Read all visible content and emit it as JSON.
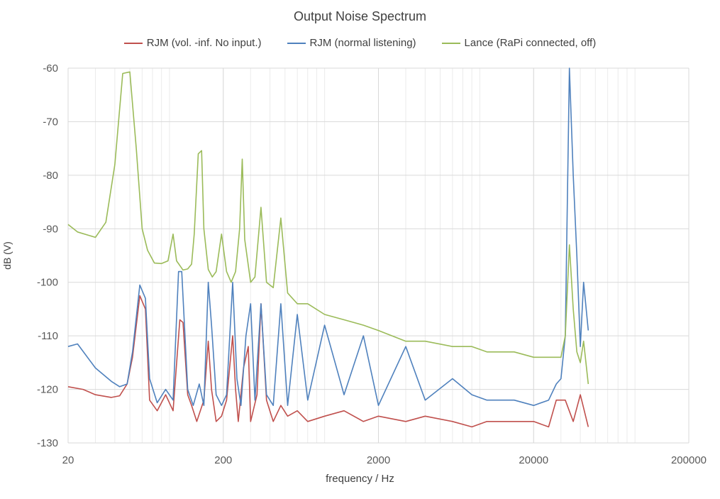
{
  "chart_data": {
    "type": "line",
    "title": "Output Noise Spectrum",
    "xlabel": "frequency / Hz",
    "ylabel": "dB (V)",
    "xscale": "log",
    "xlim": [
      20,
      200000
    ],
    "ylim": [
      -130,
      -60
    ],
    "x_ticks": [
      {
        "value": 20,
        "label": "20"
      },
      {
        "value": 200,
        "label": "200"
      },
      {
        "value": 2000,
        "label": "2000"
      },
      {
        "value": 20000,
        "label": "20000"
      },
      {
        "value": 200000,
        "label": "200000"
      }
    ],
    "y_ticks": [
      {
        "value": -60,
        "label": "-60"
      },
      {
        "value": -70,
        "label": "-70"
      },
      {
        "value": -80,
        "label": "-80"
      },
      {
        "value": -90,
        "label": "-90"
      },
      {
        "value": -100,
        "label": "-100"
      },
      {
        "value": -110,
        "label": "-110"
      },
      {
        "value": -120,
        "label": "-120"
      },
      {
        "value": -130,
        "label": "-130"
      }
    ],
    "grid": true,
    "legend_position": "top",
    "series": [
      {
        "name": "RJM (vol. -inf. No input.)",
        "color": "#C0504D",
        "points": [
          [
            20,
            -119.5
          ],
          [
            25,
            -120
          ],
          [
            30,
            -121
          ],
          [
            38,
            -121.5
          ],
          [
            43,
            -121.2
          ],
          [
            48,
            -119
          ],
          [
            52,
            -114
          ],
          [
            58,
            -102.5
          ],
          [
            63,
            -105
          ],
          [
            67,
            -122
          ],
          [
            75,
            -124
          ],
          [
            85,
            -121
          ],
          [
            95,
            -124
          ],
          [
            105,
            -107
          ],
          [
            110,
            -107.5
          ],
          [
            118,
            -121
          ],
          [
            125,
            -123
          ],
          [
            135,
            -126
          ],
          [
            150,
            -122
          ],
          [
            160,
            -111
          ],
          [
            168,
            -120
          ],
          [
            180,
            -126
          ],
          [
            195,
            -125
          ],
          [
            210,
            -122
          ],
          [
            230,
            -110
          ],
          [
            240,
            -120
          ],
          [
            250,
            -126
          ],
          [
            270,
            -116
          ],
          [
            290,
            -112
          ],
          [
            300,
            -126
          ],
          [
            330,
            -121
          ],
          [
            350,
            -104
          ],
          [
            380,
            -122
          ],
          [
            420,
            -126
          ],
          [
            470,
            -123
          ],
          [
            520,
            -125
          ],
          [
            600,
            -124
          ],
          [
            700,
            -126
          ],
          [
            900,
            -125
          ],
          [
            1200,
            -124
          ],
          [
            1600,
            -126
          ],
          [
            2000,
            -125
          ],
          [
            3000,
            -126
          ],
          [
            4000,
            -125
          ],
          [
            6000,
            -126
          ],
          [
            8000,
            -127
          ],
          [
            10000,
            -126
          ],
          [
            15000,
            -126
          ],
          [
            20000,
            -126
          ],
          [
            25000,
            -127
          ],
          [
            28000,
            -122
          ],
          [
            32000,
            -122
          ],
          [
            36000,
            -126
          ],
          [
            40000,
            -121
          ],
          [
            45000,
            -127
          ]
        ]
      },
      {
        "name": "RJM (normal listening)",
        "color": "#4F81BD",
        "points": [
          [
            20,
            -112
          ],
          [
            23,
            -111.5
          ],
          [
            30,
            -116
          ],
          [
            38,
            -118.5
          ],
          [
            43,
            -119.5
          ],
          [
            48,
            -119
          ],
          [
            52,
            -113
          ],
          [
            58,
            -100.5
          ],
          [
            63,
            -103
          ],
          [
            67,
            -118
          ],
          [
            75,
            -122.5
          ],
          [
            85,
            -120
          ],
          [
            95,
            -122
          ],
          [
            103,
            -98
          ],
          [
            108,
            -98
          ],
          [
            118,
            -120
          ],
          [
            128,
            -123
          ],
          [
            140,
            -119
          ],
          [
            150,
            -123
          ],
          [
            160,
            -100
          ],
          [
            168,
            -108
          ],
          [
            180,
            -121
          ],
          [
            195,
            -123
          ],
          [
            210,
            -121
          ],
          [
            230,
            -100
          ],
          [
            245,
            -118
          ],
          [
            260,
            -123
          ],
          [
            280,
            -110
          ],
          [
            300,
            -104
          ],
          [
            320,
            -122
          ],
          [
            350,
            -104
          ],
          [
            380,
            -121
          ],
          [
            420,
            -123
          ],
          [
            470,
            -104
          ],
          [
            520,
            -123
          ],
          [
            600,
            -106
          ],
          [
            700,
            -122
          ],
          [
            900,
            -108
          ],
          [
            1200,
            -121
          ],
          [
            1600,
            -110
          ],
          [
            2000,
            -123
          ],
          [
            3000,
            -112
          ],
          [
            4000,
            -122
          ],
          [
            6000,
            -118
          ],
          [
            8000,
            -121
          ],
          [
            10000,
            -122
          ],
          [
            15000,
            -122
          ],
          [
            20000,
            -123
          ],
          [
            25000,
            -122
          ],
          [
            28000,
            -119
          ],
          [
            30000,
            -118
          ],
          [
            32000,
            -110
          ],
          [
            34000,
            -60
          ],
          [
            36000,
            -80
          ],
          [
            38000,
            -95
          ],
          [
            40000,
            -112
          ],
          [
            42000,
            -100
          ],
          [
            45000,
            -109
          ]
        ]
      },
      {
        "name": "Lance (RaPi connected, off)",
        "color": "#9BBB59",
        "points": [
          [
            20,
            -89.2
          ],
          [
            23,
            -90.6
          ],
          [
            30,
            -91.6
          ],
          [
            35,
            -88.8
          ],
          [
            40,
            -78
          ],
          [
            45,
            -61
          ],
          [
            50,
            -60.7
          ],
          [
            55,
            -75
          ],
          [
            60,
            -90
          ],
          [
            65,
            -94
          ],
          [
            72,
            -96.4
          ],
          [
            80,
            -96.5
          ],
          [
            88,
            -96
          ],
          [
            95,
            -91
          ],
          [
            100,
            -96
          ],
          [
            110,
            -97.7
          ],
          [
            118,
            -97.5
          ],
          [
            125,
            -96.6
          ],
          [
            130,
            -91
          ],
          [
            138,
            -76
          ],
          [
            145,
            -75.4
          ],
          [
            150,
            -90
          ],
          [
            160,
            -97.6
          ],
          [
            170,
            -99
          ],
          [
            180,
            -98
          ],
          [
            195,
            -91
          ],
          [
            210,
            -98
          ],
          [
            225,
            -100
          ],
          [
            240,
            -98
          ],
          [
            255,
            -90
          ],
          [
            265,
            -77
          ],
          [
            275,
            -92
          ],
          [
            300,
            -100
          ],
          [
            320,
            -99
          ],
          [
            350,
            -86
          ],
          [
            380,
            -100
          ],
          [
            420,
            -101
          ],
          [
            470,
            -88
          ],
          [
            520,
            -102
          ],
          [
            600,
            -104
          ],
          [
            700,
            -104
          ],
          [
            900,
            -106
          ],
          [
            1200,
            -107
          ],
          [
            1600,
            -108
          ],
          [
            2000,
            -109
          ],
          [
            3000,
            -111
          ],
          [
            4000,
            -111
          ],
          [
            6000,
            -112
          ],
          [
            8000,
            -112
          ],
          [
            10000,
            -113
          ],
          [
            15000,
            -113
          ],
          [
            20000,
            -114
          ],
          [
            25000,
            -114
          ],
          [
            28000,
            -114
          ],
          [
            30000,
            -114
          ],
          [
            32000,
            -110
          ],
          [
            34000,
            -93
          ],
          [
            36000,
            -105
          ],
          [
            38000,
            -113
          ],
          [
            40000,
            -115
          ],
          [
            42000,
            -111
          ],
          [
            45000,
            -119
          ]
        ]
      }
    ]
  }
}
